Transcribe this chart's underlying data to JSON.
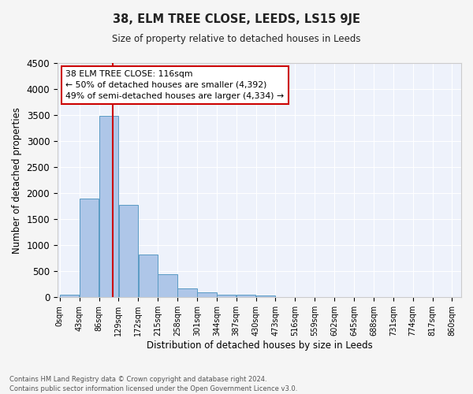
{
  "title": "38, ELM TREE CLOSE, LEEDS, LS15 9JE",
  "subtitle": "Size of property relative to detached houses in Leeds",
  "xlabel": "Distribution of detached houses by size in Leeds",
  "ylabel": "Number of detached properties",
  "footnote1": "Contains HM Land Registry data © Crown copyright and database right 2024.",
  "footnote2": "Contains public sector information licensed under the Open Government Licence v3.0.",
  "bin_edges": [
    0,
    43,
    86,
    129,
    172,
    215,
    258,
    301,
    344,
    387,
    430,
    473,
    516,
    559,
    602,
    645,
    688,
    731,
    774,
    817,
    860
  ],
  "bin_counts": [
    50,
    1900,
    3490,
    1770,
    820,
    450,
    165,
    90,
    55,
    45,
    40,
    0,
    0,
    0,
    0,
    0,
    0,
    0,
    0,
    0
  ],
  "bar_color": "#aec6e8",
  "bar_edgecolor": "#5a9bc4",
  "vline_x": 116,
  "vline_color": "#cc0000",
  "ylim": [
    0,
    4500
  ],
  "yticks": [
    0,
    500,
    1000,
    1500,
    2000,
    2500,
    3000,
    3500,
    4000,
    4500
  ],
  "annotation_text": "38 ELM TREE CLOSE: 116sqm\n← 50% of detached houses are smaller (4,392)\n49% of semi-detached houses are larger (4,334) →",
  "background_color": "#eef2fb",
  "grid_color": "#ffffff",
  "tick_labels": [
    "0sqm",
    "43sqm",
    "86sqm",
    "129sqm",
    "172sqm",
    "215sqm",
    "258sqm",
    "301sqm",
    "344sqm",
    "387sqm",
    "430sqm",
    "473sqm",
    "516sqm",
    "559sqm",
    "602sqm",
    "645sqm",
    "688sqm",
    "731sqm",
    "774sqm",
    "817sqm",
    "860sqm"
  ],
  "fig_facecolor": "#f5f5f5"
}
